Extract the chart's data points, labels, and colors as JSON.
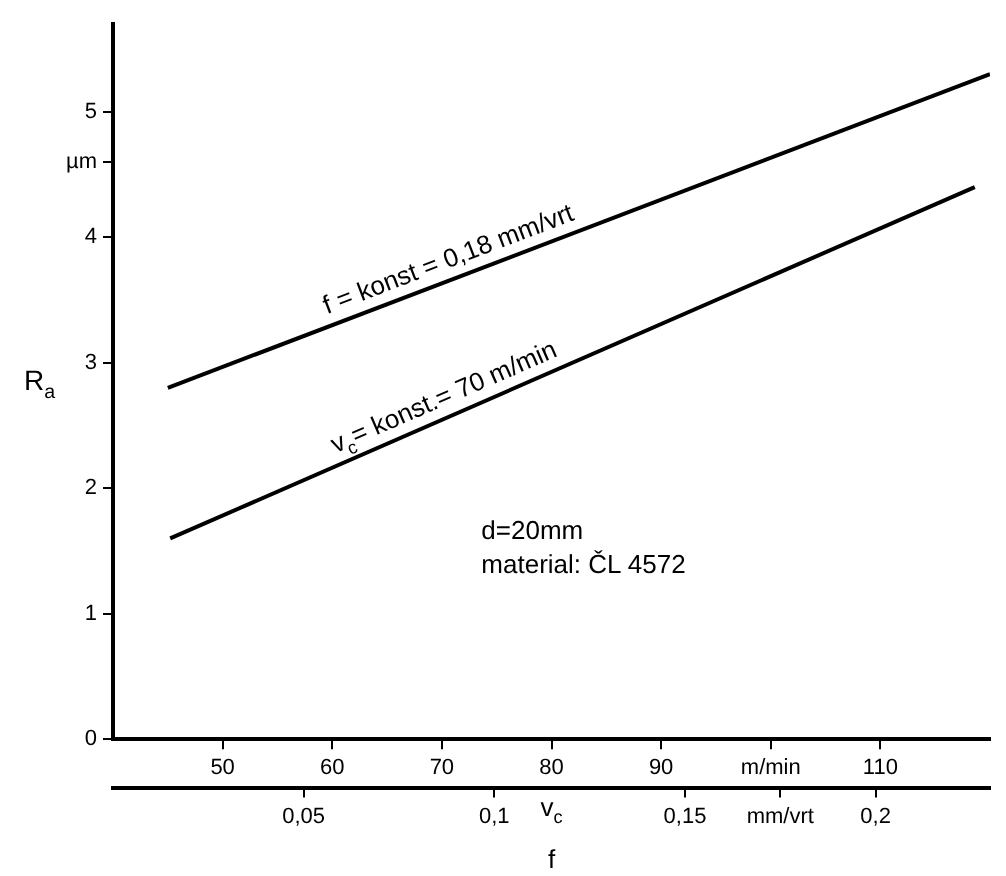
{
  "chart_data": {
    "type": "line",
    "xlabel": "v$_{c}$",
    "x2label": "f",
    "ylabel": "R$_{a}$",
    "xlim": [
      40,
      120
    ],
    "xticks": [
      50,
      60,
      70,
      80,
      90,
      {
        "value": 100,
        "label": "m/min"
      },
      110
    ],
    "x2lim": [
      0,
      0.23
    ],
    "x2ticks": [
      {
        "value": 0.05,
        "label": "0,05"
      },
      {
        "value": 0.1,
        "label": "0,1"
      },
      {
        "value": 0.15,
        "label": "0,15"
      },
      {
        "value": 0.175,
        "label": "mm/vrt"
      },
      {
        "value": 0.2,
        "label": "0,2"
      }
    ],
    "ylim": [
      0,
      5.7
    ],
    "yticks": [
      0,
      1,
      2,
      3,
      4,
      {
        "value": 4.6,
        "label": "µm"
      },
      5
    ],
    "grid": false,
    "legend": false,
    "marker": "none",
    "line_style": "solid",
    "series": [
      {
        "name": "f = konst = 0,18 mm/vrt",
        "color": "#000000",
        "x": [
          45,
          120
        ],
        "values": [
          2.8,
          5.3
        ]
      },
      {
        "name": "v$_{c}$= konst.= 70 m/min",
        "color": "#000000",
        "axis": "x2",
        "x": [
          0.015,
          0.226
        ],
        "values": [
          1.6,
          4.4
        ]
      }
    ],
    "annotations": [
      "d=20mm",
      "material: ČL 4572"
    ]
  }
}
